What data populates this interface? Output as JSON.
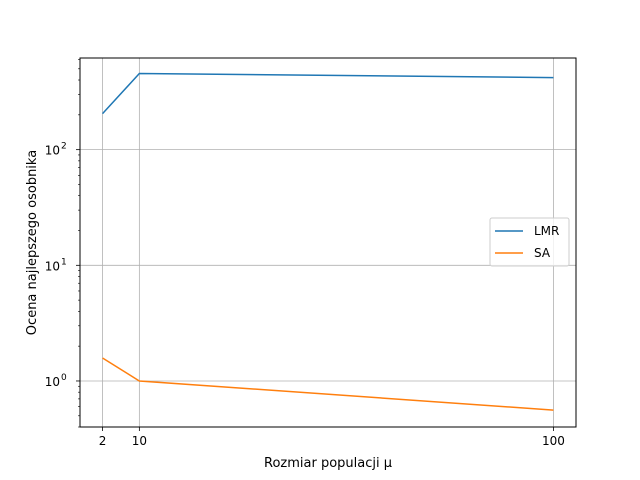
{
  "chart_data": {
    "type": "line",
    "title": "",
    "xlabel": "Rozmiar populacji μ",
    "ylabel": "Ocena najlepszego osobnika",
    "x": [
      2,
      10,
      100
    ],
    "xticks": [
      "2",
      "10",
      "100"
    ],
    "yscale": "log",
    "ylim": [
      0.4,
      620
    ],
    "xlim": [
      -2.9,
      104.9
    ],
    "yticks": [
      {
        "value": 1,
        "base": "10",
        "exp": "0"
      },
      {
        "value": 10,
        "base": "10",
        "exp": "1"
      },
      {
        "value": 100,
        "base": "10",
        "exp": "2"
      }
    ],
    "grid": true,
    "legend_position": "center-right",
    "series": [
      {
        "name": "LMR",
        "color": "#1f77b4",
        "values": [
          205,
          455,
          420
        ]
      },
      {
        "name": "SA",
        "color": "#ff7f0e",
        "values": [
          1.58,
          1.0,
          0.56
        ]
      }
    ]
  }
}
